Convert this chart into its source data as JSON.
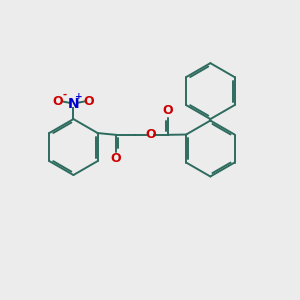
{
  "bg_color": "#ececec",
  "bond_color": "#2d6b5e",
  "bond_width": 1.4,
  "o_color": "#cc0000",
  "n_color": "#0000cc",
  "text_fontsize": 8.5,
  "fig_bg": "#ececec",
  "xlim": [
    0,
    10
  ],
  "ylim": [
    0,
    10
  ]
}
